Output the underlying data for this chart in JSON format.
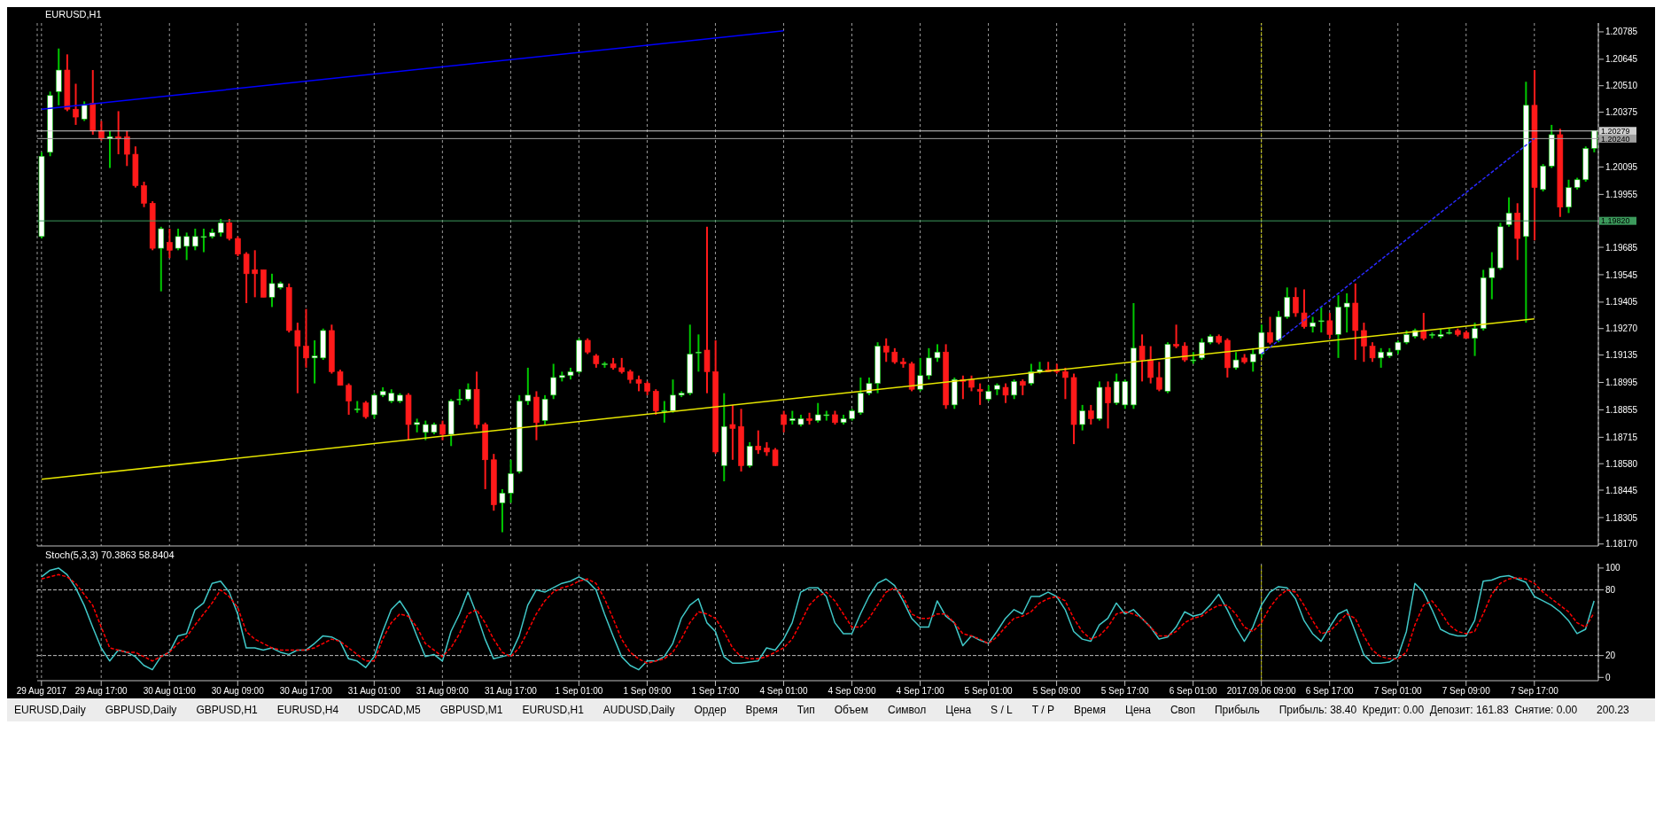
{
  "chart_data": [
    {
      "type": "candlestick",
      "title": "EURUSD,H1",
      "categories": [
        "29 Aug 2017",
        null,
        null,
        null,
        null,
        null,
        null,
        "29 Aug 17:00",
        null,
        null,
        null,
        null,
        null,
        null,
        null,
        "30 Aug 01:00",
        null,
        null,
        null,
        null,
        null,
        null,
        null,
        "30 Aug 09:00",
        null,
        null,
        null,
        null,
        null,
        null,
        null,
        "30 Aug 17:00",
        null,
        null,
        null,
        null,
        null,
        null,
        null,
        "31 Aug 01:00",
        null,
        null,
        null,
        null,
        null,
        null,
        null,
        "31 Aug 09:00",
        null,
        null,
        null,
        null,
        null,
        null,
        null,
        "31 Aug 17:00",
        null,
        null,
        null,
        null,
        null,
        null,
        null,
        "1 Sep 01:00",
        null,
        null,
        null,
        null,
        null,
        null,
        null,
        "1 Sep 09:00",
        null,
        null,
        null,
        null,
        null,
        null,
        null,
        "1 Sep 17:00",
        null,
        null,
        null,
        null,
        null,
        null,
        null,
        "4 Sep 01:00",
        null,
        null,
        null,
        null,
        null,
        null,
        null,
        "4 Sep 09:00",
        null,
        null,
        null,
        null,
        null,
        null,
        null,
        "4 Sep 17:00",
        null,
        null,
        null,
        null,
        null,
        null,
        null,
        "5 Sep 01:00",
        null,
        null,
        null,
        null,
        null,
        null,
        null,
        "5 Sep 09:00",
        null,
        null,
        null,
        null,
        null,
        null,
        null,
        "5 Sep 17:00",
        null,
        null,
        null,
        null,
        null,
        null,
        null,
        "6 Sep 01:00",
        null,
        null,
        null,
        null,
        null,
        null,
        null,
        "2017.09.06 09:00",
        null,
        null,
        null,
        null,
        null,
        null,
        null,
        "6 Sep 17:00",
        null,
        null,
        null,
        null,
        null,
        null,
        null,
        "7 Sep 01:00",
        null,
        null,
        null,
        null,
        null,
        null,
        null,
        "7 Sep 09:00",
        null,
        null,
        null,
        null,
        null,
        null,
        null,
        "7 Sep 17:00",
        null,
        null,
        null,
        null,
        null,
        null,
        null
      ],
      "ohlc": [
        [
          1.1974,
          1.2017,
          1.1973,
          1.2015
        ],
        [
          1.2017,
          1.2048,
          1.2015,
          1.2046
        ],
        [
          1.2048,
          1.207,
          1.2041,
          1.2059
        ],
        [
          1.2059,
          1.2067,
          1.2038,
          1.2039
        ],
        [
          1.2039,
          1.2052,
          1.2031,
          1.2035
        ],
        [
          1.2034,
          1.2043,
          1.2033,
          1.2041
        ],
        [
          1.2042,
          1.2059,
          1.2026,
          1.2028
        ],
        [
          1.2028,
          1.2033,
          1.2023,
          1.2024
        ],
        [
          1.2024,
          1.2028,
          1.2009,
          1.2025
        ],
        [
          1.2025,
          1.2038,
          1.2016,
          1.2024
        ],
        [
          1.2025,
          1.2028,
          1.201,
          1.2016
        ],
        [
          1.2016,
          1.202,
          1.1999,
          1.2
        ],
        [
          1.2,
          1.2002,
          1.1989,
          1.1991
        ],
        [
          1.1991,
          1.1992,
          1.1967,
          1.1968
        ],
        [
          1.1968,
          1.1979,
          1.1946,
          1.1978
        ],
        [
          1.1971,
          1.1978,
          1.1963,
          1.1967
        ],
        [
          1.1968,
          1.1978,
          1.1967,
          1.1974
        ],
        [
          1.1969,
          1.1976,
          1.1962,
          1.1974
        ],
        [
          1.1969,
          1.1978,
          1.1967,
          1.1974
        ],
        [
          1.1974,
          1.1978,
          1.1966,
          1.1974
        ],
        [
          1.1974,
          1.1978,
          1.1973,
          1.1976
        ],
        [
          1.1976,
          1.1983,
          1.1974,
          1.1981
        ],
        [
          1.1981,
          1.1983,
          1.1972,
          1.1973
        ],
        [
          1.1973,
          1.1974,
          1.1964,
          1.1965
        ],
        [
          1.1965,
          1.1966,
          1.194,
          1.1955
        ],
        [
          1.1957,
          1.1967,
          1.1943,
          1.1955
        ],
        [
          1.1957,
          1.1957,
          1.1943,
          1.1943
        ],
        [
          1.1943,
          1.1955,
          1.1938,
          1.195
        ],
        [
          1.1948,
          1.1951,
          1.1947,
          1.195
        ],
        [
          1.1948,
          1.195,
          1.1925,
          1.1926
        ],
        [
          1.1926,
          1.193,
          1.1894,
          1.1918
        ],
        [
          1.1918,
          1.1937,
          1.1907,
          1.1912
        ],
        [
          1.1912,
          1.1921,
          1.1899,
          1.1913
        ],
        [
          1.1912,
          1.1927,
          1.1911,
          1.1926
        ],
        [
          1.1926,
          1.1929,
          1.1904,
          1.1905
        ],
        [
          1.1905,
          1.1906,
          1.1898,
          1.1898
        ],
        [
          1.1898,
          1.1899,
          1.1883,
          1.189
        ],
        [
          1.1886,
          1.189,
          1.1884,
          1.1886
        ],
        [
          1.1889,
          1.189,
          1.1881,
          1.1882
        ],
        [
          1.1883,
          1.1894,
          1.1881,
          1.1893
        ],
        [
          1.1893,
          1.1897,
          1.1892,
          1.1895
        ],
        [
          1.189,
          1.1896,
          1.1889,
          1.1894
        ],
        [
          1.189,
          1.1894,
          1.1889,
          1.1893
        ],
        [
          1.1893,
          1.1894,
          1.187,
          1.1878
        ],
        [
          1.1878,
          1.1881,
          1.1874,
          1.1879
        ],
        [
          1.1874,
          1.188,
          1.187,
          1.1878
        ],
        [
          1.1874,
          1.1879,
          1.1873,
          1.1878
        ],
        [
          1.1878,
          1.188,
          1.187,
          1.1873
        ],
        [
          1.1873,
          1.1891,
          1.1867,
          1.189
        ],
        [
          1.1891,
          1.1896,
          1.1888,
          1.1891
        ],
        [
          1.1891,
          1.1899,
          1.189,
          1.1896
        ],
        [
          1.1896,
          1.1905,
          1.1876,
          1.1878
        ],
        [
          1.1878,
          1.1879,
          1.1845,
          1.186
        ],
        [
          1.186,
          1.1863,
          1.1834,
          1.1837
        ],
        [
          1.1838,
          1.1845,
          1.1823,
          1.1843
        ],
        [
          1.1843,
          1.186,
          1.1838,
          1.1853
        ],
        [
          1.1854,
          1.1893,
          1.1853,
          1.189
        ],
        [
          1.189,
          1.1907,
          1.1888,
          1.1893
        ],
        [
          1.1892,
          1.1895,
          1.187,
          1.1879
        ],
        [
          1.188,
          1.1893,
          1.1878,
          1.1891
        ],
        [
          1.1893,
          1.1909,
          1.1891,
          1.1902
        ],
        [
          1.1902,
          1.1905,
          1.19,
          1.1903
        ],
        [
          1.1903,
          1.1907,
          1.1901,
          1.1905
        ],
        [
          1.1905,
          1.1922,
          1.1904,
          1.1921
        ],
        [
          1.1921,
          1.1922,
          1.1914,
          1.1915
        ],
        [
          1.1913,
          1.1914,
          1.1907,
          1.1909
        ],
        [
          1.1909,
          1.191,
          1.1907,
          1.1909
        ],
        [
          1.1909,
          1.1912,
          1.1906,
          1.1907
        ],
        [
          1.1907,
          1.1912,
          1.1904,
          1.1905
        ],
        [
          1.1905,
          1.1906,
          1.1899,
          1.1901
        ],
        [
          1.1901,
          1.1903,
          1.1895,
          1.1899
        ],
        [
          1.1899,
          1.19,
          1.1893,
          1.1895
        ],
        [
          1.1895,
          1.1896,
          1.1883,
          1.1885
        ],
        [
          1.1885,
          1.189,
          1.1879,
          1.1885
        ],
        [
          1.1885,
          1.1901,
          1.1884,
          1.1893
        ],
        [
          1.1893,
          1.1895,
          1.1892,
          1.1894
        ],
        [
          1.1894,
          1.1929,
          1.1893,
          1.1914
        ],
        [
          1.1915,
          1.1924,
          1.1905,
          1.1915
        ],
        [
          1.1916,
          1.1979,
          1.1894,
          1.1905
        ],
        [
          1.1905,
          1.1921,
          1.1863,
          1.1864
        ],
        [
          1.1857,
          1.1894,
          1.1849,
          1.1877
        ],
        [
          1.1878,
          1.1888,
          1.186,
          1.1876
        ],
        [
          1.1877,
          1.1886,
          1.1854,
          1.1857
        ],
        [
          1.1857,
          1.1869,
          1.1856,
          1.1867
        ],
        [
          1.1867,
          1.1875,
          1.1863,
          1.1865
        ],
        [
          1.1866,
          1.1869,
          1.1862,
          1.1864
        ],
        [
          1.1865,
          1.1866,
          1.1857,
          1.1857
        ],
        [
          1.1883,
          1.1885,
          1.1874,
          1.1878
        ],
        [
          1.188,
          1.1885,
          1.1878,
          1.1881
        ],
        [
          1.1878,
          1.1883,
          1.1877,
          1.1881
        ],
        [
          1.1881,
          1.1884,
          1.1878,
          1.188
        ],
        [
          1.188,
          1.1889,
          1.1879,
          1.1883
        ],
        [
          1.1883,
          1.1885,
          1.188,
          1.1883
        ],
        [
          1.1883,
          1.1885,
          1.1878,
          1.1879
        ],
        [
          1.1879,
          1.1883,
          1.1878,
          1.1881
        ],
        [
          1.1881,
          1.1886,
          1.188,
          1.1885
        ],
        [
          1.1884,
          1.1902,
          1.1883,
          1.1894
        ],
        [
          1.1894,
          1.1902,
          1.1893,
          1.1899
        ],
        [
          1.1899,
          1.192,
          1.1894,
          1.1918
        ],
        [
          1.1918,
          1.1922,
          1.191,
          1.1915
        ],
        [
          1.1915,
          1.1917,
          1.1909,
          1.191
        ],
        [
          1.191,
          1.1912,
          1.1907,
          1.1909
        ],
        [
          1.1909,
          1.191,
          1.1895,
          1.1896
        ],
        [
          1.1896,
          1.1912,
          1.1895,
          1.1903
        ],
        [
          1.1903,
          1.1917,
          1.1901,
          1.1912
        ],
        [
          1.1912,
          1.1919,
          1.191,
          1.1915
        ],
        [
          1.1915,
          1.1919,
          1.1886,
          1.1888
        ],
        [
          1.1888,
          1.1902,
          1.1886,
          1.1901
        ],
        [
          1.1901,
          1.1903,
          1.1891,
          1.19
        ],
        [
          1.1901,
          1.1903,
          1.1895,
          1.1897
        ],
        [
          1.1896,
          1.1899,
          1.1888,
          1.1895
        ],
        [
          1.1891,
          1.1898,
          1.189,
          1.1895
        ],
        [
          1.1896,
          1.1899,
          1.1893,
          1.1898
        ],
        [
          1.1897,
          1.1899,
          1.1889,
          1.1893
        ],
        [
          1.1893,
          1.1901,
          1.1891,
          1.19
        ],
        [
          1.19,
          1.1901,
          1.1893,
          1.1898
        ],
        [
          1.1899,
          1.1909,
          1.1898,
          1.1905
        ],
        [
          1.1905,
          1.191,
          1.1904,
          1.1906
        ],
        [
          1.1906,
          1.191,
          1.1905,
          1.1905
        ],
        [
          1.1906,
          1.1909,
          1.1904,
          1.1905
        ],
        [
          1.1905,
          1.1907,
          1.1891,
          1.1902
        ],
        [
          1.1902,
          1.1904,
          1.1868,
          1.1878
        ],
        [
          1.1878,
          1.1888,
          1.1875,
          1.1885
        ],
        [
          1.1885,
          1.1888,
          1.1878,
          1.1881
        ],
        [
          1.1881,
          1.19,
          1.188,
          1.1897
        ],
        [
          1.1897,
          1.19,
          1.1876,
          1.1889
        ],
        [
          1.1889,
          1.1904,
          1.1888,
          1.19
        ],
        [
          1.1888,
          1.1901,
          1.1886,
          1.19
        ],
        [
          1.1888,
          1.194,
          1.1886,
          1.1917
        ],
        [
          1.1918,
          1.1924,
          1.19,
          1.1911
        ],
        [
          1.1911,
          1.1918,
          1.1899,
          1.1902
        ],
        [
          1.1902,
          1.191,
          1.1895,
          1.1896
        ],
        [
          1.1895,
          1.192,
          1.1894,
          1.1919
        ],
        [
          1.1919,
          1.1929,
          1.1917,
          1.1918
        ],
        [
          1.1918,
          1.192,
          1.191,
          1.1911
        ],
        [
          1.1911,
          1.1915,
          1.1909,
          1.1911
        ],
        [
          1.1912,
          1.1922,
          1.1911,
          1.192
        ],
        [
          1.192,
          1.1924,
          1.1919,
          1.1923
        ],
        [
          1.1923,
          1.1924,
          1.1919,
          1.192
        ],
        [
          1.1921,
          1.1922,
          1.1902,
          1.1907
        ],
        [
          1.1907,
          1.1915,
          1.1906,
          1.1911
        ],
        [
          1.1912,
          1.1914,
          1.1909,
          1.191
        ],
        [
          1.191,
          1.1917,
          1.1905,
          1.1914
        ],
        [
          1.1914,
          1.1929,
          1.1912,
          1.1925
        ],
        [
          1.1925,
          1.1933,
          1.1919,
          1.192
        ],
        [
          1.1921,
          1.1936,
          1.192,
          1.1933
        ],
        [
          1.1933,
          1.1948,
          1.1932,
          1.1943
        ],
        [
          1.1943,
          1.1948,
          1.1933,
          1.1935
        ],
        [
          1.1935,
          1.1947,
          1.1927,
          1.1928
        ],
        [
          1.1928,
          1.1933,
          1.1925,
          1.193
        ],
        [
          1.1931,
          1.1938,
          1.1925,
          1.1931
        ],
        [
          1.1931,
          1.1935,
          1.1922,
          1.1924
        ],
        [
          1.1924,
          1.1944,
          1.1912,
          1.1938
        ],
        [
          1.1938,
          1.1945,
          1.1925,
          1.194
        ],
        [
          1.194,
          1.195,
          1.1911,
          1.1926
        ],
        [
          1.1926,
          1.193,
          1.191,
          1.1918
        ],
        [
          1.1918,
          1.192,
          1.191,
          1.1912
        ],
        [
          1.1912,
          1.1917,
          1.1907,
          1.1915
        ],
        [
          1.1913,
          1.1917,
          1.1912,
          1.1915
        ],
        [
          1.1916,
          1.1921,
          1.1914,
          1.192
        ],
        [
          1.192,
          1.1926,
          1.1919,
          1.1924
        ],
        [
          1.1923,
          1.1927,
          1.1922,
          1.1926
        ],
        [
          1.1926,
          1.1935,
          1.1921,
          1.1922
        ],
        [
          1.1924,
          1.1925,
          1.1922,
          1.1924
        ],
        [
          1.1923,
          1.1927,
          1.1922,
          1.1924
        ],
        [
          1.1925,
          1.1927,
          1.1924,
          1.1925
        ],
        [
          1.1926,
          1.1927,
          1.1923,
          1.1924
        ],
        [
          1.1925,
          1.1926,
          1.1922,
          1.1922
        ],
        [
          1.1922,
          1.193,
          1.1913,
          1.1927
        ],
        [
          1.1927,
          1.1957,
          1.1926,
          1.1953
        ],
        [
          1.1953,
          1.1966,
          1.1942,
          1.1958
        ],
        [
          1.1958,
          1.1981,
          1.1957,
          1.1979
        ],
        [
          1.198,
          1.1994,
          1.1979,
          1.1986
        ],
        [
          1.1986,
          1.1991,
          1.1962,
          1.1973
        ],
        [
          1.1974,
          1.2053,
          1.193,
          1.2041
        ],
        [
          1.2041,
          1.2059,
          1.1972,
          1.1999
        ],
        [
          1.1998,
          1.2011,
          1.1997,
          1.201
        ],
        [
          1.201,
          1.2031,
          1.2009,
          1.2026
        ],
        [
          1.2026,
          1.2029,
          1.1984,
          1.1989
        ],
        [
          1.1989,
          1.2003,
          1.1986,
          1.1999
        ],
        [
          1.1999,
          1.2004,
          1.1998,
          1.2003
        ],
        [
          1.2003,
          1.202,
          1.2002,
          1.2019
        ],
        [
          1.2019,
          1.2028,
          1.2017,
          1.2028
        ]
      ],
      "series": [
        {
          "type": "line",
          "color": "#0000ff",
          "x": [
            "29 Aug 2017",
            "4 Sep 01:00"
          ],
          "values": [
            1.2039,
            1.2079
          ]
        },
        {
          "type": "line",
          "color": "#e6e600",
          "x": [
            "29 Aug 2017",
            "7 Sep 17:00"
          ],
          "values": [
            1.185,
            1.1932
          ]
        },
        {
          "type": "line",
          "color": "#2a2aff",
          "line_style": "dashed",
          "x": [
            "2017.09.06 09:00",
            "7 Sep 17:00"
          ],
          "values": [
            1.1914,
            1.2024
          ]
        }
      ],
      "ylim": [
        1.1816,
        1.2083
      ],
      "yticks": [
        1.20785,
        1.20645,
        {
          "value": 1.2051,
          "label": "1.20510"
        },
        1.20375,
        1.20095,
        1.19955,
        1.19685,
        1.19545,
        1.19405,
        {
          "value": 1.1927,
          "label": "1.19270"
        },
        1.19135,
        1.18995,
        1.18855,
        1.18715,
        {
          "value": 1.1858,
          "label": "1.18580"
        },
        1.18445,
        1.18305,
        {
          "value": 1.1817,
          "label": "1.18170"
        }
      ],
      "ref_lines": [
        {
          "axis": "y",
          "value": 1.20279,
          "label": "1.20279",
          "color": "#d0d0d0"
        },
        {
          "axis": "y",
          "value": 1.2024,
          "label": "1.20240",
          "color": "#a0a0a0"
        },
        {
          "axis": "y",
          "value": 1.1982,
          "label": "1.19820",
          "color": "#3c9a5c"
        },
        {
          "axis": "x",
          "value": "2017.09.06 09:00",
          "color": "#e6e600",
          "line_style": "dashed"
        }
      ],
      "grid": "x",
      "tick_labels": "y"
    },
    {
      "type": "line",
      "title": "Stoch(5,3,3) 70.3863 58.8404",
      "categories": [
        "29 Aug 2017",
        null,
        null,
        null,
        null,
        null,
        null,
        "29 Aug 17:00",
        null,
        null,
        null,
        null,
        null,
        null,
        null,
        "30 Aug 01:00",
        null,
        null,
        null,
        null,
        null,
        null,
        null,
        "30 Aug 09:00",
        null,
        null,
        null,
        null,
        null,
        null,
        null,
        "30 Aug 17:00",
        null,
        null,
        null,
        null,
        null,
        null,
        null,
        "31 Aug 01:00",
        null,
        null,
        null,
        null,
        null,
        null,
        null,
        "31 Aug 09:00",
        null,
        null,
        null,
        null,
        null,
        null,
        null,
        "31 Aug 17:00",
        null,
        null,
        null,
        null,
        null,
        null,
        null,
        "1 Sep 01:00",
        null,
        null,
        null,
        null,
        null,
        null,
        null,
        "1 Sep 09:00",
        null,
        null,
        null,
        null,
        null,
        null,
        null,
        "1 Sep 17:00",
        null,
        null,
        null,
        null,
        null,
        null,
        null,
        "4 Sep 01:00",
        null,
        null,
        null,
        null,
        null,
        null,
        null,
        "4 Sep 09:00",
        null,
        null,
        null,
        null,
        null,
        null,
        null,
        "4 Sep 17:00",
        null,
        null,
        null,
        null,
        null,
        null,
        null,
        "5 Sep 01:00",
        null,
        null,
        null,
        null,
        null,
        null,
        null,
        "5 Sep 09:00",
        null,
        null,
        null,
        null,
        null,
        null,
        null,
        "5 Sep 17:00",
        null,
        null,
        null,
        null,
        null,
        null,
        null,
        "6 Sep 01:00",
        null,
        null,
        null,
        null,
        null,
        null,
        null,
        "2017.09.06 09:00",
        null,
        null,
        null,
        null,
        null,
        null,
        null,
        "6 Sep 17:00",
        null,
        null,
        null,
        null,
        null,
        null,
        null,
        "7 Sep 01:00",
        null,
        null,
        null,
        null,
        null,
        null,
        null,
        "7 Sep 09:00",
        null,
        null,
        null,
        null,
        null,
        null,
        null,
        "7 Sep 17:00",
        null,
        null,
        null,
        null,
        null,
        null,
        null
      ],
      "series": [
        {
          "color": "#40c8c8",
          "values": [
            92,
            98,
            100,
            94,
            82,
            66,
            46,
            27,
            15,
            25,
            23,
            19,
            11,
            7,
            19,
            23,
            38,
            40,
            62,
            68,
            86,
            88,
            78,
            58,
            27,
            27,
            25,
            27,
            23,
            21,
            25,
            25,
            31,
            38,
            37,
            33,
            17,
            15,
            9,
            19,
            42,
            62,
            70,
            58,
            38,
            19,
            21,
            15,
            42,
            58,
            78,
            58,
            35,
            17,
            19,
            21,
            38,
            66,
            80,
            78,
            82,
            86,
            88,
            92,
            88,
            80,
            58,
            38,
            19,
            11,
            7,
            15,
            15,
            19,
            31,
            54,
            66,
            72,
            50,
            42,
            19,
            13,
            13,
            14,
            15,
            27,
            25,
            35,
            50,
            78,
            82,
            82,
            74,
            50,
            40,
            40,
            58,
            74,
            86,
            90,
            84,
            70,
            54,
            46,
            46,
            70,
            56,
            50,
            29,
            38,
            34,
            31,
            42,
            54,
            62,
            58,
            74,
            74,
            78,
            74,
            62,
            42,
            35,
            33,
            48,
            54,
            68,
            58,
            62,
            54,
            46,
            35,
            37,
            46,
            60,
            56,
            58,
            66,
            76,
            62,
            46,
            33,
            46,
            66,
            78,
            83,
            82,
            72,
            52,
            40,
            33,
            46,
            58,
            62,
            42,
            21,
            13,
            13,
            14,
            19,
            42,
            86,
            78,
            62,
            44,
            40,
            38,
            38,
            52,
            88,
            89,
            92,
            93,
            90,
            87,
            74,
            70,
            66,
            60,
            52,
            40,
            44,
            70
          ]
        },
        {
          "color": "#ff0000",
          "line_style": "dashed",
          "values": [
            90,
            92,
            94,
            92,
            86,
            76,
            66,
            46,
            27,
            25,
            23,
            23,
            19,
            15,
            19,
            23,
            31,
            37,
            48,
            58,
            68,
            80,
            74,
            64,
            42,
            35,
            31,
            27,
            25,
            25,
            25,
            25,
            27,
            31,
            35,
            33,
            27,
            21,
            15,
            15,
            35,
            50,
            58,
            56,
            46,
            31,
            25,
            19,
            27,
            40,
            58,
            62,
            50,
            35,
            23,
            19,
            27,
            42,
            58,
            70,
            78,
            82,
            84,
            88,
            90,
            86,
            72,
            54,
            35,
            23,
            17,
            13,
            15,
            17,
            23,
            35,
            50,
            60,
            58,
            54,
            42,
            27,
            19,
            17,
            17,
            19,
            23,
            27,
            35,
            50,
            66,
            74,
            78,
            70,
            58,
            46,
            46,
            54,
            66,
            78,
            82,
            74,
            58,
            54,
            54,
            58,
            58,
            50,
            40,
            38,
            35,
            31,
            37,
            46,
            54,
            56,
            60,
            68,
            72,
            74,
            70,
            54,
            42,
            35,
            38,
            46,
            58,
            60,
            58,
            54,
            46,
            38,
            38,
            42,
            50,
            54,
            56,
            62,
            66,
            66,
            58,
            46,
            42,
            50,
            64,
            74,
            80,
            78,
            66,
            52,
            40,
            42,
            50,
            58,
            54,
            38,
            25,
            19,
            17,
            17,
            23,
            48,
            66,
            70,
            60,
            48,
            42,
            40,
            42,
            58,
            76,
            86,
            90,
            91,
            90,
            86,
            78,
            72,
            66,
            60,
            50,
            46,
            59
          ]
        }
      ],
      "ylim": [
        -3,
        104
      ],
      "yticks": [
        0,
        20,
        80,
        100
      ],
      "ref_lines": [
        {
          "axis": "y",
          "value": 80,
          "color": "#c0c0c0",
          "line_style": "dashed"
        },
        {
          "axis": "y",
          "value": 20,
          "color": "#c0c0c0",
          "line_style": "dashed"
        },
        {
          "axis": "x",
          "value": "2017.09.06 09:00",
          "color": "#e6e600",
          "line_style": "dashed"
        }
      ],
      "grid": "x"
    },
    {
      "type": "other",
      "annotations": [
        "EURUSD,Daily",
        "GBPUSD,Daily",
        "GBPUSD,H1",
        "EURUSD,H4",
        "USDCAD,M5",
        "GBPUSD,M1",
        "EURUSD,H1",
        "AUDUSD,Daily",
        "Ордер",
        "Время",
        "Тип",
        "Объем",
        "Символ",
        "Цена",
        "S / L",
        "T / P",
        "Время",
        "Цена",
        "Своп",
        "Прибыль",
        "Прибыль: 38.40  Кредит: 0.00  Депозит: 161.83  Снятие: 0.00",
        "200.23"
      ]
    }
  ]
}
